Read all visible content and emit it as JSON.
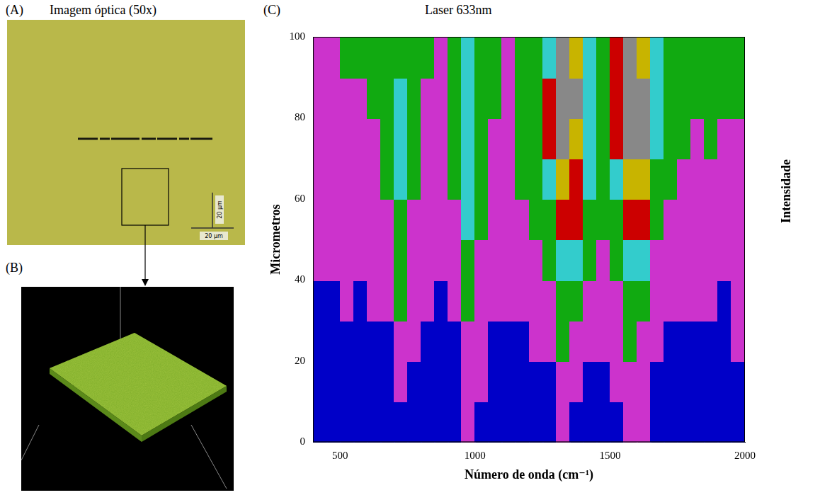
{
  "panels": [
    {
      "letter": "(A)",
      "title": "Imagem óptica (50x)",
      "scale_bars": [
        "20 µm",
        "20 µm"
      ]
    },
    {
      "letter": "(B)"
    },
    {
      "letter": "(C)",
      "title": "Laser 633nm"
    }
  ],
  "chart_data": {
    "type": "heatmap",
    "x_label": "Número de onda (cm⁻¹)",
    "y_label": "Micrometros",
    "z_label": "Intensidade",
    "xlim": [
      400,
      2000
    ],
    "xticks": [
      500,
      1000,
      1500,
      2000
    ],
    "ylim": [
      0,
      100
    ],
    "yticks": [
      0,
      20,
      40,
      60,
      80,
      100
    ],
    "grid": false,
    "x": [
      425,
      475,
      525,
      575,
      625,
      675,
      725,
      775,
      825,
      875,
      925,
      975,
      1025,
      1075,
      1125,
      1175,
      1225,
      1275,
      1325,
      1375,
      1425,
      1475,
      1525,
      1575,
      1625,
      1675,
      1725,
      1775,
      1825,
      1875,
      1925,
      1975
    ],
    "y": [
      5,
      15,
      25,
      35,
      45,
      55,
      65,
      75,
      85,
      95
    ],
    "color_range": [
      0,
      100
    ],
    "colors": [
      "#0000c8",
      "#cc33cc",
      "#11aa11",
      "#33cccc",
      "#cc0000",
      "#c8b400",
      "#888888"
    ],
    "cells": [
      [
        8,
        6,
        7,
        9,
        8,
        10,
        14,
        12,
        9,
        8,
        10,
        15,
        12,
        9,
        8,
        10,
        11,
        12,
        16,
        14,
        12,
        11,
        13,
        18,
        16,
        12,
        10,
        9,
        8,
        10,
        9,
        12
      ],
      [
        9,
        8,
        10,
        9,
        12,
        11,
        18,
        14,
        10,
        9,
        11,
        20,
        15,
        10,
        9,
        11,
        12,
        14,
        22,
        18,
        14,
        12,
        15,
        24,
        19,
        13,
        11,
        10,
        9,
        11,
        10,
        13
      ],
      [
        12,
        10,
        11,
        13,
        12,
        14,
        24,
        16,
        12,
        11,
        14,
        26,
        18,
        13,
        12,
        14,
        16,
        18,
        30,
        24,
        18,
        16,
        20,
        32,
        26,
        17,
        14,
        13,
        12,
        13,
        12,
        15
      ],
      [
        14,
        12,
        15,
        14,
        16,
        18,
        30,
        20,
        15,
        14,
        18,
        34,
        22,
        16,
        15,
        18,
        20,
        24,
        40,
        32,
        22,
        20,
        26,
        42,
        34,
        22,
        18,
        16,
        15,
        16,
        14,
        18
      ],
      [
        18,
        16,
        18,
        20,
        19,
        22,
        36,
        24,
        19,
        18,
        22,
        40,
        28,
        20,
        19,
        22,
        26,
        32,
        52,
        44,
        30,
        26,
        34,
        56,
        46,
        28,
        22,
        20,
        19,
        20,
        18,
        22
      ],
      [
        20,
        18,
        22,
        21,
        24,
        26,
        40,
        28,
        22,
        20,
        26,
        46,
        32,
        24,
        22,
        26,
        30,
        40,
        66,
        58,
        36,
        30,
        42,
        70,
        60,
        34,
        26,
        24,
        22,
        24,
        22,
        24
      ],
      [
        22,
        20,
        24,
        23,
        26,
        30,
        44,
        30,
        24,
        22,
        30,
        52,
        36,
        26,
        24,
        30,
        36,
        50,
        80,
        70,
        44,
        36,
        52,
        84,
        74,
        40,
        30,
        28,
        26,
        28,
        26,
        26
      ],
      [
        24,
        22,
        26,
        25,
        28,
        32,
        48,
        32,
        26,
        24,
        32,
        56,
        38,
        28,
        26,
        32,
        40,
        58,
        92,
        82,
        50,
        40,
        60,
        95,
        86,
        46,
        32,
        30,
        28,
        30,
        28,
        28
      ],
      [
        26,
        24,
        28,
        27,
        30,
        34,
        46,
        34,
        28,
        26,
        34,
        54,
        40,
        30,
        28,
        34,
        42,
        62,
        96,
        88,
        54,
        42,
        64,
        98,
        90,
        48,
        34,
        32,
        30,
        32,
        30,
        30
      ],
      [
        28,
        26,
        30,
        29,
        32,
        36,
        42,
        34,
        30,
        28,
        34,
        48,
        38,
        30,
        28,
        34,
        40,
        56,
        88,
        80,
        50,
        40,
        58,
        90,
        84,
        44,
        34,
        32,
        30,
        32,
        30,
        30
      ]
    ]
  }
}
